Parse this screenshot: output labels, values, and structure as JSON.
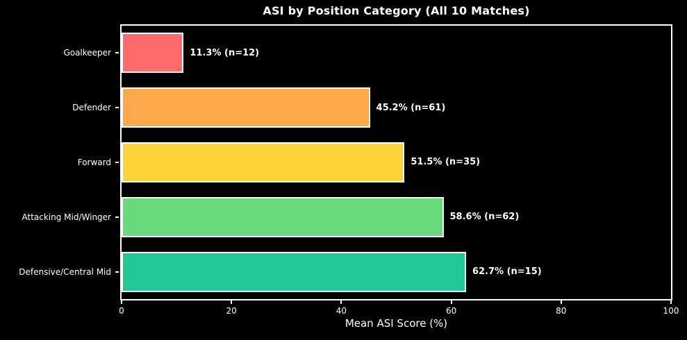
{
  "figure": {
    "background": "#000000",
    "text_color": "#ffffff"
  },
  "chart_data": {
    "type": "bar",
    "orientation": "horizontal",
    "title": "ASI by Position Category (All 10 Matches)",
    "xlabel": "Mean ASI Score (%)",
    "categories": [
      "Goalkeeper",
      "Defender",
      "Forward",
      "Attacking Mid/Winger",
      "Defensive/Central Mid"
    ],
    "values": [
      11.3,
      45.2,
      51.5,
      58.6,
      62.7
    ],
    "sample_sizes": [
      12,
      61,
      35,
      62,
      15
    ],
    "bar_labels": [
      "11.3% (n=12)",
      "45.2% (n=61)",
      "51.5% (n=35)",
      "58.6% (n=62)",
      "62.7% (n=15)"
    ],
    "bar_colors": [
      "#ff6b6b",
      "#ffa94d",
      "#ffd43b",
      "#69db7c",
      "#20c997"
    ],
    "bar_edge_color": "#ffffff",
    "xlim": [
      0,
      100
    ],
    "xticks": [
      0,
      20,
      40,
      60,
      80,
      100
    ],
    "grid": false,
    "legend_position": "none",
    "background": "#000000",
    "text_color": "#ffffff"
  }
}
